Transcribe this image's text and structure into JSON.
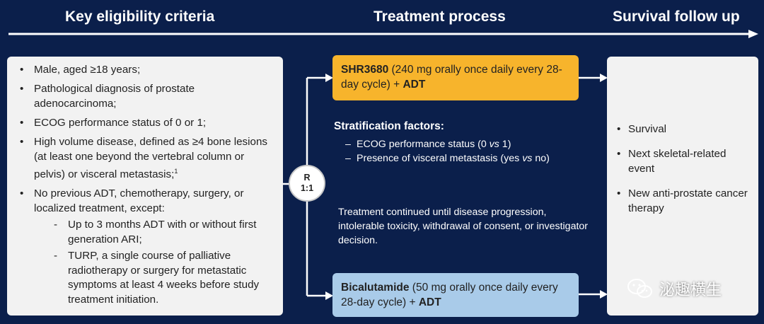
{
  "headers": {
    "eligibility": "Key eligibility criteria",
    "treatment": "Treatment process",
    "survival": "Survival follow up"
  },
  "eligibility": {
    "c1": "Male, aged ≥18 years;",
    "c2": "Pathological diagnosis of prostate adenocarcinoma;",
    "c3": "ECOG performance status of 0 or 1;",
    "c4": "High volume disease, defined as ≥4 bone lesions (at least one beyond the vertebral column or pelvis) or visceral metastasis;",
    "c4_ref": "1",
    "c5": "No previous ADT, chemotherapy, surgery, or localized treatment, except:",
    "c5_sub1": "Up to 3 months ADT with or without first generation ARI;",
    "c5_sub2": "TURP, a single course of palliative radiotherapy or surgery for metastatic symptoms at least 4 weeks before study treatment initiation."
  },
  "randomization": {
    "line1": "R",
    "line2": "1:1"
  },
  "arm1": {
    "drug": "SHR3680",
    "dose": " (240 mg orally once daily every 28-day cycle) + ",
    "adt": "ADT",
    "color": "#f7b42c"
  },
  "arm2": {
    "drug": "Bicalutamide",
    "dose": " (50 mg orally once daily every 28-day cycle) + ",
    "adt": "ADT",
    "color": "#a9cbe9"
  },
  "stratification": {
    "title": "Stratification factors:",
    "f1_a": "ECOG performance status (0 ",
    "f1_vs": "vs",
    "f1_b": " 1)",
    "f2_a": "Presence of visceral metastasis (yes ",
    "f2_vs": "vs",
    "f2_b": " no)"
  },
  "continuation": "Treatment continued until disease progression, intolerable toxicity, withdrawal of consent, or investigator decision.",
  "survival": {
    "items": [
      "Survival",
      "Next skeletal-related event",
      "New anti-prostate cancer therapy"
    ]
  },
  "watermark": {
    "text": "泌趣横生",
    "icon": "wechat-icon"
  },
  "colors": {
    "background": "#0b1f4b",
    "box": "#f2f2f2"
  }
}
